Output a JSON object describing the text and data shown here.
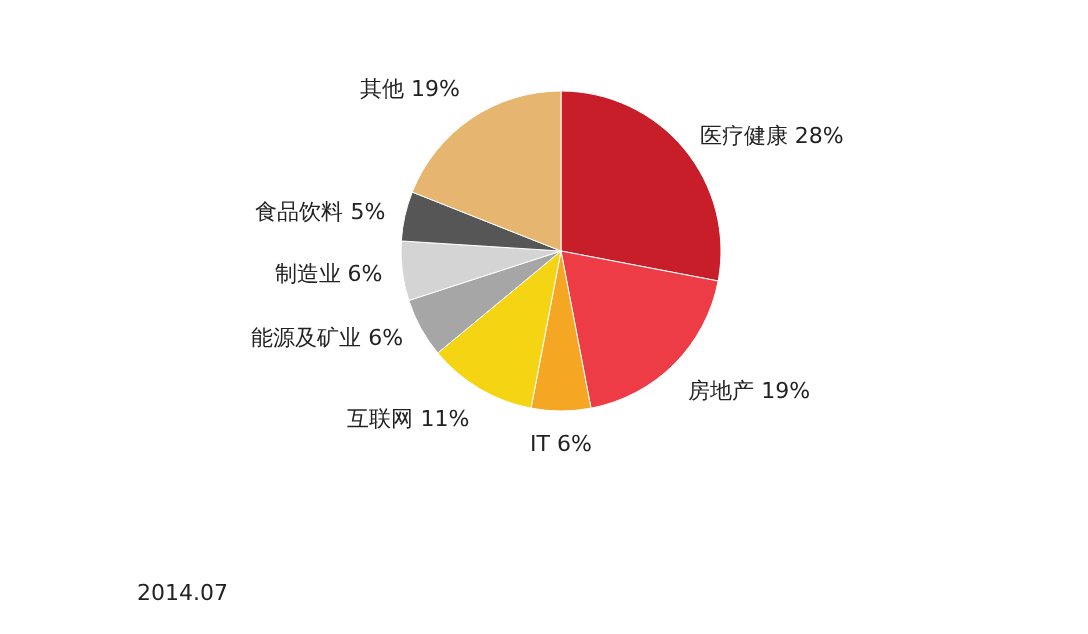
{
  "chart_data": {
    "type": "pie",
    "categories": [
      "医疗健康",
      "房地产",
      "IT",
      "互联网",
      "能源及矿业",
      "制造业",
      "食品饮料",
      "其他"
    ],
    "values": [
      28,
      19,
      6,
      11,
      6,
      6,
      5,
      19
    ],
    "colors": [
      "#c81e2a",
      "#ee3c46",
      "#f5a623",
      "#f5d414",
      "#a6a6a6",
      "#d4d4d4",
      "#565656",
      "#e6b570"
    ],
    "value_labels": [
      "28%",
      "19%",
      "6%",
      "11%",
      "6%",
      "6%",
      "5%",
      "19%"
    ],
    "annotations": [
      "2014.07"
    ]
  }
}
